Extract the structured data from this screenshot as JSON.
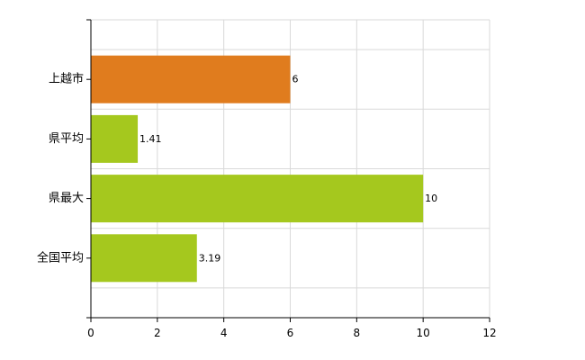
{
  "chart_data": {
    "type": "bar",
    "orientation": "horizontal",
    "title": "",
    "xlabel": "",
    "ylabel": "",
    "categories": [
      "上越市",
      "県平均",
      "県最大",
      "全国平均"
    ],
    "values": [
      6,
      1.41,
      10,
      3.19
    ],
    "value_labels": [
      "6",
      "1.41",
      "10",
      "3.19"
    ],
    "bar_colors": [
      "#e07c1e",
      "#a5c81e",
      "#a5c81e",
      "#a5c81e"
    ],
    "xlim": [
      0,
      12
    ],
    "xticks": [
      0,
      2,
      4,
      6,
      8,
      10,
      12
    ],
    "xtick_labels": [
      "0",
      "2",
      "4",
      "6",
      "8",
      "10",
      "12"
    ],
    "grid": true,
    "legend": "none"
  }
}
